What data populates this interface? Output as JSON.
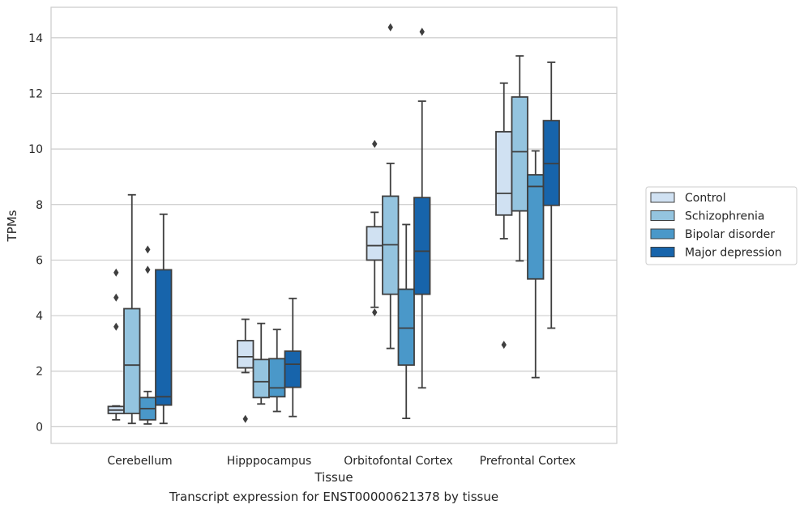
{
  "caption": "Transcript expression for ENST00000621378 by tissue",
  "chart_data": {
    "type": "box",
    "xlabel": "Tissue",
    "ylabel": "TPMs",
    "ylim": [
      -0.6,
      15.1
    ],
    "yticks": [
      0,
      2,
      4,
      6,
      8,
      10,
      12,
      14
    ],
    "grid": "horizontal",
    "legend_position": "right",
    "categories": [
      "Cerebellum",
      "Hipppocampus",
      "Orbitofontal Cortex",
      "Prefrontal Cortex"
    ],
    "series": [
      {
        "name": "Control",
        "color": "#d0e1f2",
        "boxes": [
          {
            "whislo": 0.25,
            "q1": 0.48,
            "med": 0.6,
            "q3": 0.73,
            "whishi": 0.75,
            "fliers": [
              3.6,
              4.65,
              5.55
            ]
          },
          {
            "whislo": 1.95,
            "q1": 2.12,
            "med": 2.52,
            "q3": 3.1,
            "whishi": 3.87,
            "fliers": [
              0.28
            ]
          },
          {
            "whislo": 4.3,
            "q1": 6.0,
            "med": 6.52,
            "q3": 7.2,
            "whishi": 7.72,
            "fliers": [
              4.12,
              10.18
            ]
          },
          {
            "whislo": 6.77,
            "q1": 7.62,
            "med": 8.4,
            "q3": 10.62,
            "whishi": 12.37,
            "fliers": [
              2.95
            ]
          }
        ]
      },
      {
        "name": "Schizophrenia",
        "color": "#94c4df",
        "boxes": [
          {
            "whislo": 0.12,
            "q1": 0.48,
            "med": 2.22,
            "q3": 4.25,
            "whishi": 8.35,
            "fliers": []
          },
          {
            "whislo": 0.82,
            "q1": 1.05,
            "med": 1.62,
            "q3": 2.42,
            "whishi": 3.72,
            "fliers": []
          },
          {
            "whislo": 2.82,
            "q1": 4.77,
            "med": 6.55,
            "q3": 8.3,
            "whishi": 9.48,
            "fliers": [
              14.38
            ]
          },
          {
            "whislo": 5.97,
            "q1": 7.77,
            "med": 9.9,
            "q3": 11.87,
            "whishi": 13.35,
            "fliers": []
          }
        ]
      },
      {
        "name": "Bipolar disorder",
        "color": "#4a98c9",
        "boxes": [
          {
            "whislo": 0.1,
            "q1": 0.25,
            "med": 0.65,
            "q3": 1.05,
            "whishi": 1.27,
            "fliers": [
              5.65,
              6.38
            ]
          },
          {
            "whislo": 0.55,
            "q1": 1.08,
            "med": 1.4,
            "q3": 2.45,
            "whishi": 3.5,
            "fliers": []
          },
          {
            "whislo": 0.3,
            "q1": 2.22,
            "med": 3.55,
            "q3": 4.95,
            "whishi": 7.28,
            "fliers": []
          },
          {
            "whislo": 1.77,
            "q1": 5.32,
            "med": 8.65,
            "q3": 9.07,
            "whishi": 9.93,
            "fliers": []
          }
        ]
      },
      {
        "name": "Major depression",
        "color": "#1764ab",
        "boxes": [
          {
            "whislo": 0.12,
            "q1": 0.78,
            "med": 1.08,
            "q3": 5.65,
            "whishi": 7.65,
            "fliers": []
          },
          {
            "whislo": 0.37,
            "q1": 1.42,
            "med": 2.25,
            "q3": 2.72,
            "whishi": 4.62,
            "fliers": []
          },
          {
            "whislo": 1.4,
            "q1": 4.77,
            "med": 6.32,
            "q3": 8.25,
            "whishi": 11.72,
            "fliers": [
              14.22
            ]
          },
          {
            "whislo": 3.55,
            "q1": 7.97,
            "med": 9.47,
            "q3": 11.02,
            "whishi": 13.12,
            "fliers": []
          }
        ]
      }
    ]
  }
}
